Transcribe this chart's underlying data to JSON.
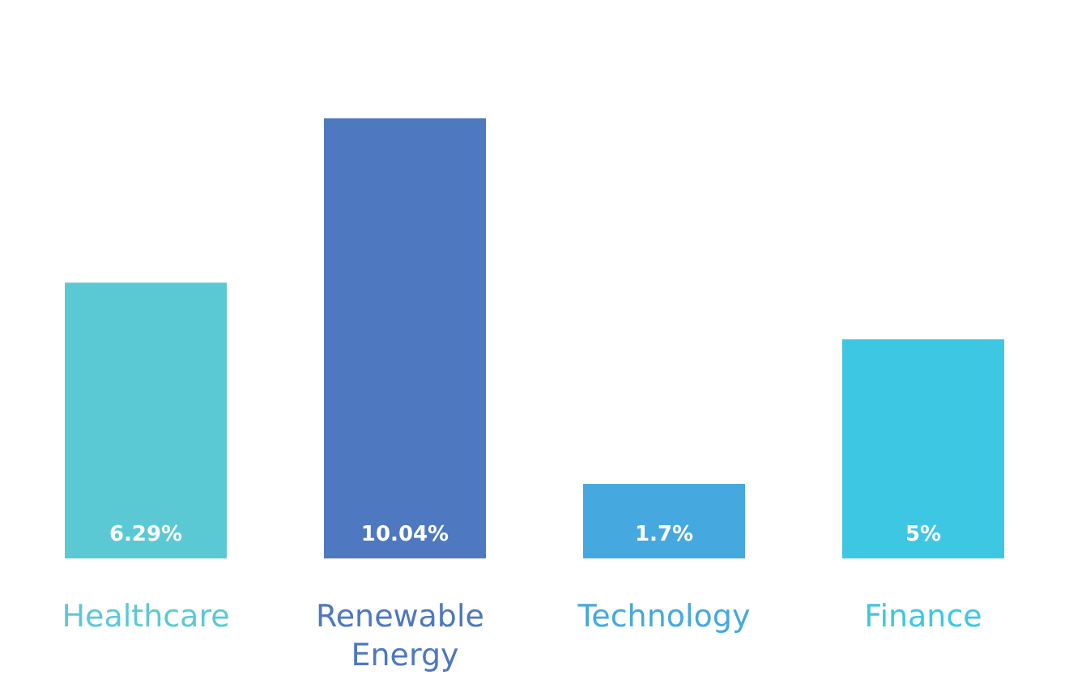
{
  "chart_data": {
    "type": "bar",
    "categories": [
      "Healthcare",
      "Renewable Energy",
      "Technology",
      "Finance"
    ],
    "values": [
      6.29,
      10.04,
      1.7,
      5
    ],
    "value_labels": [
      "6.29%",
      "10.04%",
      "1.7%",
      "5%"
    ],
    "colors": [
      "#5bc9d3",
      "#4e78bf",
      "#45a9e0",
      "#3ec7e3"
    ]
  }
}
